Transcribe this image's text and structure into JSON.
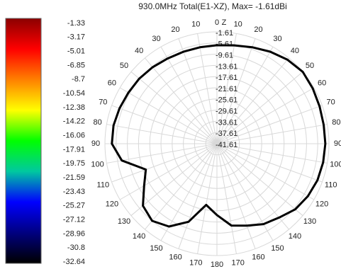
{
  "chart_data": {
    "type": "polar",
    "title": "930.0MHz Total(E1-XZ), Max= -1.61dBi",
    "axis_label": "Z",
    "color": "#000000",
    "theta": [
      0,
      10,
      20,
      30,
      40,
      50,
      60,
      70,
      80,
      90,
      100,
      110,
      120,
      130,
      140,
      150,
      160,
      170,
      180,
      190,
      200,
      210,
      220,
      230,
      240,
      250,
      260,
      270,
      280,
      290,
      300,
      310,
      320,
      330,
      340,
      350
    ],
    "values": [
      -6.4,
      -5.9,
      -4.9,
      -3.6,
      -2.4,
      -1.61,
      -2.1,
      -2.6,
      -2.9,
      -2.9,
      -3.1,
      -3.4,
      -4.1,
      -5.1,
      -7.1,
      -8.4,
      -10.4,
      -11.9,
      -16.1,
      -19.4,
      -11.9,
      -7.4,
      -5.6,
      -7.1,
      -11.6,
      -14.6,
      -7.1,
      -4.1,
      -4.1,
      -4.6,
      -5.1,
      -5.4,
      -5.9,
      -6.4,
      -6.6,
      -6.6
    ],
    "rlim": [
      -41.61,
      -1.61
    ],
    "rticks": [
      -1.61,
      -5.61,
      -9.61,
      -13.61,
      -17.61,
      -21.61,
      -25.61,
      -29.61,
      -33.61,
      -37.61,
      -41.61
    ],
    "thetaticks": [
      0,
      10,
      20,
      30,
      40,
      50,
      60,
      70,
      80,
      90,
      100,
      110,
      120,
      130,
      140,
      150,
      160,
      170,
      180,
      {
        "value": 190,
        "label": "170"
      },
      {
        "value": 200,
        "label": "160"
      },
      {
        "value": 210,
        "label": "150"
      },
      {
        "value": 220,
        "label": "140"
      },
      {
        "value": 230,
        "label": "130"
      },
      {
        "value": 240,
        "label": "120"
      },
      {
        "value": 250,
        "label": "110"
      },
      {
        "value": 260,
        "label": "100"
      },
      {
        "value": 270,
        "label": "90"
      },
      {
        "value": 280,
        "label": "80"
      },
      {
        "value": 290,
        "label": "70"
      },
      {
        "value": 300,
        "label": "60"
      },
      {
        "value": 310,
        "label": "50"
      },
      {
        "value": 320,
        "label": "40"
      },
      {
        "value": 330,
        "label": "30"
      },
      {
        "value": 340,
        "label": "20"
      },
      {
        "value": 350,
        "label": "10"
      }
    ],
    "grid": true,
    "colorbar": {
      "ticks": [
        -1.33,
        -3.17,
        -5.01,
        -6.85,
        -8.7,
        -10.54,
        -12.38,
        -14.22,
        -16.06,
        -17.91,
        -19.75,
        -21.59,
        -23.43,
        -25.27,
        -27.12,
        -28.96,
        -30.8,
        -32.64
      ],
      "colors": [
        "#8b0000",
        "#ff0000",
        "#ff8000",
        "#ffff00",
        "#00ff00",
        "#00c8a0",
        "#0000ff",
        "#000080",
        "#000000"
      ]
    }
  }
}
